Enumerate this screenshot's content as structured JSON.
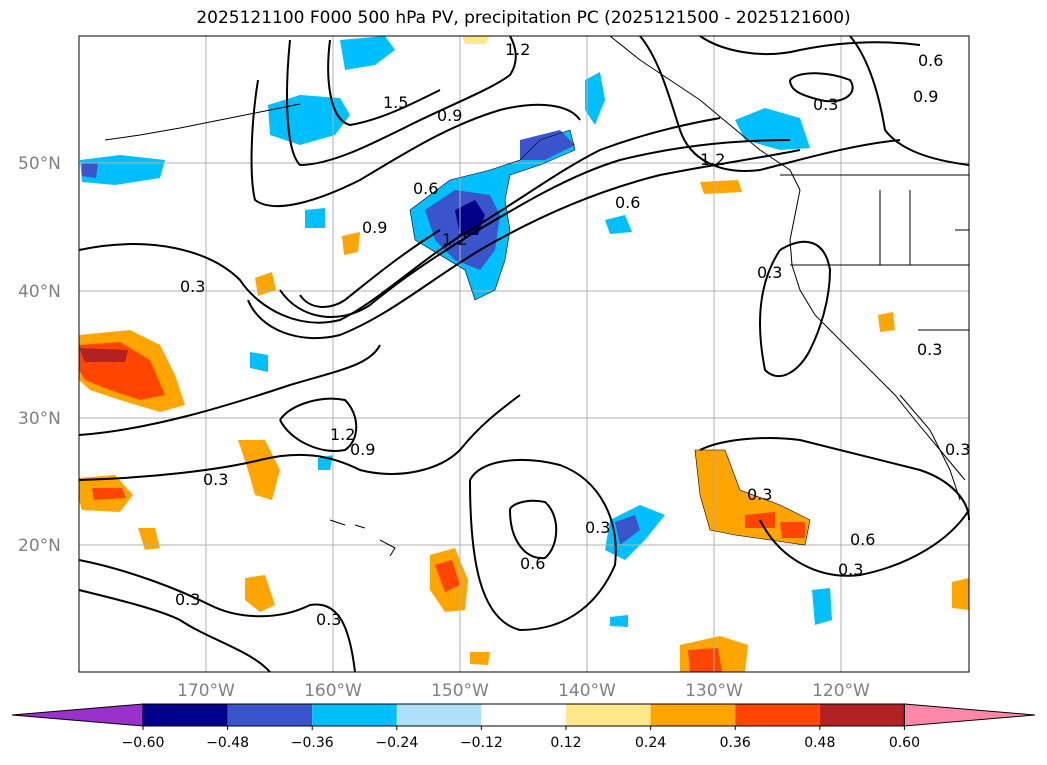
{
  "title": "2025121100 F000 500 hPa PV, precipitation PC (2025121500 - 2025121600)",
  "lat_labels": [
    "50°N",
    "40°N",
    "30°N",
    "20°N"
  ],
  "lon_labels": [
    "170°W",
    "160°W",
    "150°W",
    "140°W",
    "130°W",
    "120°W"
  ],
  "contour_labels": [
    "1.2",
    "0.6",
    "1.5",
    "0.9",
    "0.3",
    "0.9",
    "0.3",
    "1.2",
    "0.6",
    "0.9",
    "1.2",
    "0.6",
    "0.3",
    "0.3",
    "0.3",
    "0.6",
    "0.3",
    "0.3",
    "0.3",
    "1.2",
    "0.9",
    "0.3",
    "0.6",
    "0.3",
    "0.3",
    "0.6",
    "0.3",
    "0.3"
  ],
  "colorbar": {
    "ticks": [
      "−0.60",
      "−0.48",
      "−0.36",
      "−0.24",
      "−0.12",
      "0.12",
      "0.24",
      "0.36",
      "0.48",
      "0.60"
    ],
    "colors": [
      "#9932cc",
      "#00008b",
      "#3a55cc",
      "#00bfff",
      "#aee0f8",
      "#ffffff",
      "#ffe88a",
      "#ffa500",
      "#ff4500",
      "#b22222",
      "#ff88aa"
    ]
  }
}
